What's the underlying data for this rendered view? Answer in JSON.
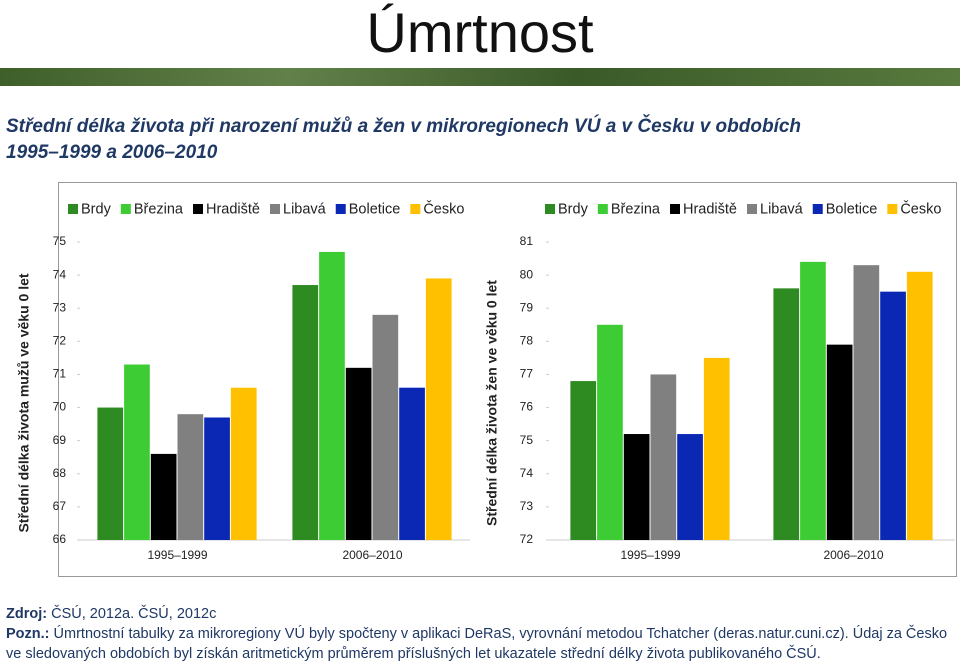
{
  "title": "Úmrtnost",
  "subtitle": "Střední délka života při narození mužů a žen v mikroregionech VÚ a v Česku v obdobích 1995–1999 a 2006–2010",
  "chart_data": [
    {
      "type": "bar",
      "ylabel": "Střední délka života mužů ve věku 0 let",
      "categories": [
        "1995–1999",
        "2006–2010"
      ],
      "series": [
        {
          "name": "Brdy",
          "color": "#2e8b22",
          "values": [
            70.0,
            73.7
          ]
        },
        {
          "name": "Březina",
          "color": "#3dcc33",
          "values": [
            71.3,
            74.7
          ]
        },
        {
          "name": "Hradiště",
          "color": "#000000",
          "values": [
            68.6,
            71.2
          ]
        },
        {
          "name": "Libavá",
          "color": "#808080",
          "values": [
            69.8,
            72.8
          ]
        },
        {
          "name": "Boletice",
          "color": "#0a28b4",
          "values": [
            69.7,
            70.6
          ]
        },
        {
          "name": "Česko",
          "color": "#ffc000",
          "values": [
            70.6,
            73.9
          ]
        }
      ],
      "ylim": [
        66,
        75
      ],
      "yticks": [
        66,
        67,
        68,
        69,
        70,
        71,
        72,
        73,
        74,
        75
      ],
      "legend": "top"
    },
    {
      "type": "bar",
      "ylabel": "Střední délka života žen ve věku 0 let",
      "categories": [
        "1995–1999",
        "2006–2010"
      ],
      "series": [
        {
          "name": "Brdy",
          "color": "#2e8b22",
          "values": [
            76.8,
            79.6
          ]
        },
        {
          "name": "Březina",
          "color": "#3dcc33",
          "values": [
            78.5,
            80.4
          ]
        },
        {
          "name": "Hradiště",
          "color": "#000000",
          "values": [
            75.2,
            77.9
          ]
        },
        {
          "name": "Libavá",
          "color": "#808080",
          "values": [
            77.0,
            80.3
          ]
        },
        {
          "name": "Boletice",
          "color": "#0a28b4",
          "values": [
            75.2,
            79.5
          ]
        },
        {
          "name": "Česko",
          "color": "#ffc000",
          "values": [
            77.5,
            80.1
          ]
        }
      ],
      "ylim": [
        72,
        81
      ],
      "yticks": [
        72,
        73,
        74,
        75,
        76,
        77,
        78,
        79,
        80,
        81
      ],
      "legend": "top"
    }
  ],
  "source_label": "Zdroj:",
  "source": "ČSÚ, 2012a. ČSÚ, 2012c",
  "note_label": "Pozn.:",
  "note": "Úmrtnostní tabulky za mikroregiony VÚ byly spočteny v aplikaci DeRaS, vyrovnání metodou Tchatcher (deras.natur.cuni.cz). Údaj za Česko ve sledovaných obdobích byl získán aritmetickým průměrem příslušných let ukazatele střední délky života publikovaného ČSÚ."
}
